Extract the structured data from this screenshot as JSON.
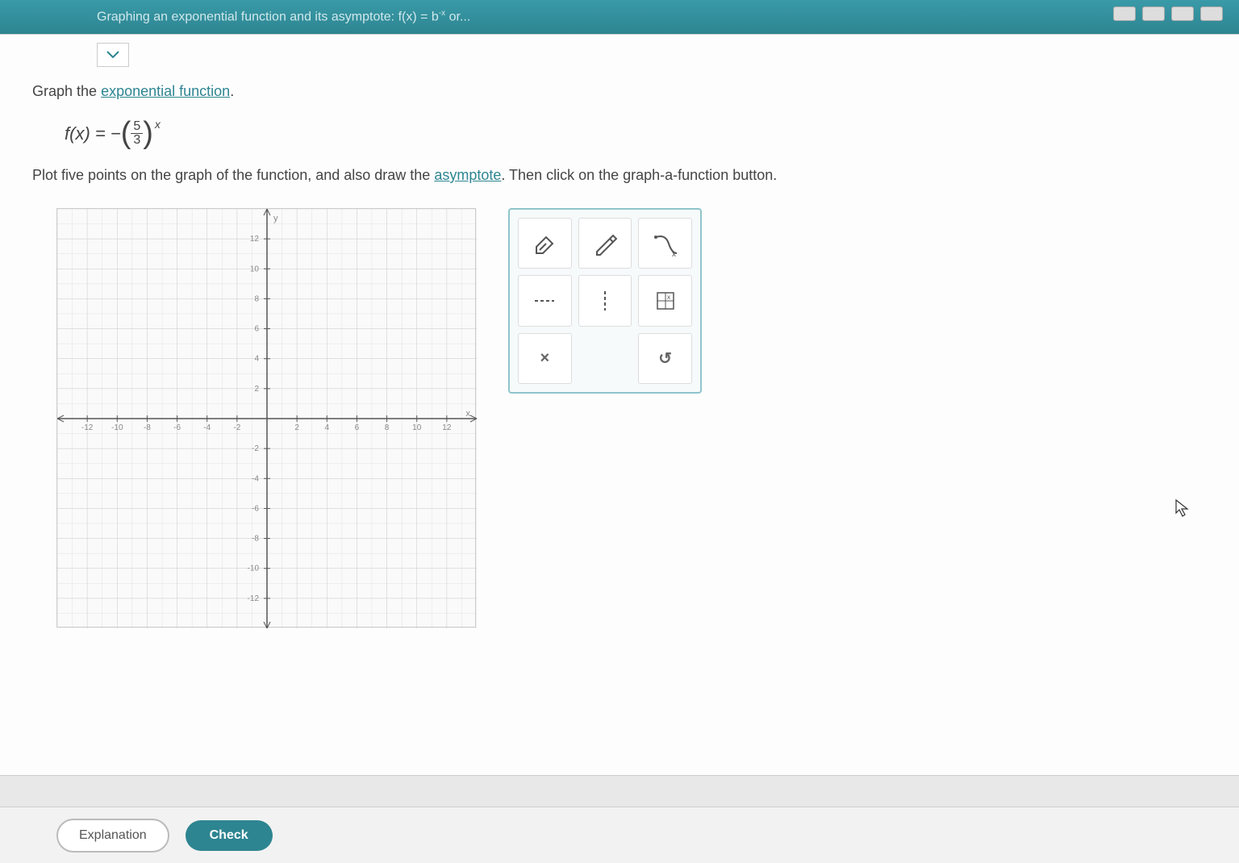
{
  "header": {
    "title_prefix": "Graphing an exponential function and its asymptote: f(x) = b",
    "title_exp": "-x",
    "title_suffix": " or..."
  },
  "prompt": {
    "pre": "Graph the ",
    "link": "exponential function",
    "post": "."
  },
  "equation": {
    "lhs": "f(x) = −",
    "num": "5",
    "den": "3",
    "exp": "x"
  },
  "instruction": {
    "p1": "Plot five points on the graph of the function, and also draw the ",
    "link": "asymptote",
    "p2": ". Then click on the graph-a-function button."
  },
  "graph": {
    "x_min": -14,
    "x_max": 14,
    "y_min": -14,
    "y_max": 14,
    "tick_step": 2,
    "x_ticks": [
      -12,
      -10,
      -8,
      -6,
      -4,
      -2,
      2,
      4,
      6,
      8,
      10,
      12
    ],
    "y_ticks": [
      12,
      10,
      8,
      6,
      4,
      2,
      -2,
      -4,
      -6,
      -8,
      -10,
      -12
    ],
    "grid_color": "#d0d0d0",
    "axis_color": "#555",
    "bg_color": "#fafafa",
    "x_label": "x",
    "y_label": "y"
  },
  "tools": {
    "clear_x": "×",
    "undo": "↺"
  },
  "footer": {
    "explanation": "Explanation",
    "check": "Check"
  }
}
